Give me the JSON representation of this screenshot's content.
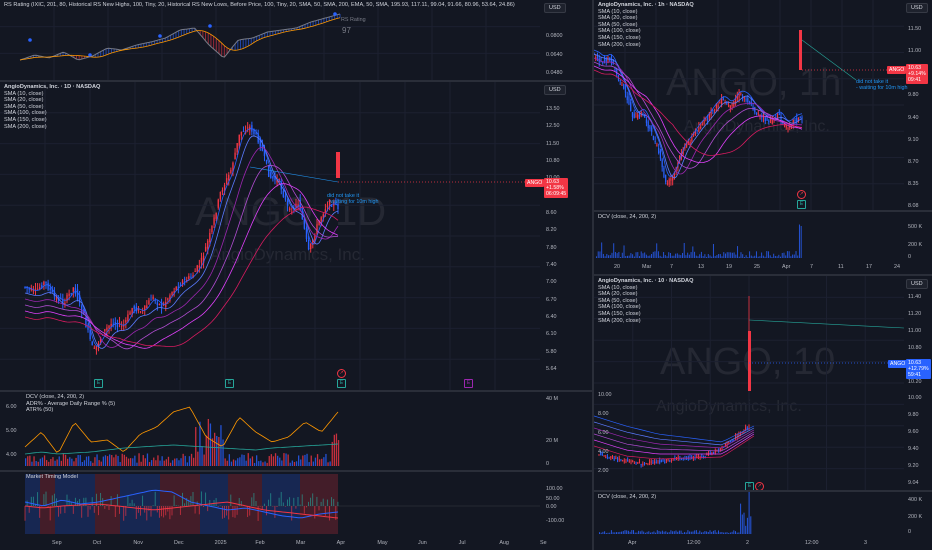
{
  "colors": {
    "background": "#131722",
    "up": "#26a69a",
    "down": "#ef5350",
    "candle_up": "#2962ff",
    "candle_down": "#f23645",
    "sma_blue": "#2962ff",
    "sma_purple": "#9c27b0",
    "accent_note": "#2196f3",
    "orange": "#ff9800"
  },
  "icons": {
    "earnings_badge": "E-badge-icon",
    "flag_badge": "lightning-icon"
  },
  "left": {
    "rs": {
      "legend": "RS Rating (IXIC, 201, 80, Historical RS New Highs, 100, Tiny, 20, Historical RS New Lows, Before Price, 100, Tiny, 20, SMA, 50, SMA, 200, EMA, 50, SMA, 195.93, 117.11, 99.04, 91.66, 80.96, 53.64, 24.86)",
      "rating_label": "RS Rating",
      "rating_value": "97",
      "currency": "USD",
      "scale": [
        "0.0800",
        "0.0640",
        "0.0480"
      ]
    },
    "main": {
      "legend": [
        "AngioDynamics, Inc. · 1D · NASDAQ",
        "SMA (10, close)",
        "SMA (20, close)",
        "SMA (50, close)",
        "SMA (100, close)",
        "SMA (150, close)",
        "SMA (200, close)"
      ],
      "currency": "USD",
      "watermark_symbol": "ANGO, 1D",
      "watermark_name": "AngioDynamics, Inc.",
      "scale": [
        "13.50",
        "12.50",
        "11.50",
        "10.80",
        "10.00",
        "9.40",
        "8.60",
        "8.20",
        "7.80",
        "7.40",
        "7.00",
        "6.70",
        "6.40",
        "6.10",
        "5.80",
        "5.64"
      ],
      "price_tag": {
        "symbol": "ANGO",
        "price": "10.63",
        "change": "+1.58%",
        "countdown": "06:09:45"
      },
      "note": [
        "did not take it",
        "- waiting for 10m high"
      ]
    },
    "dcv": {
      "legend": [
        "DCV (close, 24, 200, 2)",
        "ADR% - Average Daily Range % (5)",
        "ATR% (50)"
      ],
      "left_scale": [
        "6.00",
        "5.00",
        "4.00"
      ],
      "right_scale": [
        "40 M",
        "20 M",
        "0"
      ]
    },
    "mtm": {
      "legend": "Market Timing Model",
      "scale": [
        "100.00",
        "50.00",
        "0.00",
        "-100.00"
      ]
    },
    "time_axis": [
      "Sep",
      "Oct",
      "Nov",
      "Dec",
      "2025",
      "Feb",
      "Mar",
      "Apr",
      "May",
      "Jun",
      "Jul",
      "Aug",
      "Se"
    ]
  },
  "right_top": {
    "legend": [
      "AngioDynamics, Inc. · 1h · NASDAQ",
      "SMA (10, close)",
      "SMA (20, close)",
      "SMA (50, close)",
      "SMA (100, close)",
      "SMA (150, close)",
      "SMA (200, close)"
    ],
    "currency": "USD",
    "watermark_symbol": "ANGO, 1h",
    "watermark_name": "AngioDynamics, Inc.",
    "scale": [
      "11.50",
      "11.00",
      "10.20",
      "9.80",
      "9.40",
      "9.10",
      "8.70",
      "8.35",
      "8.08"
    ],
    "price_tag": {
      "symbol": "ANGO",
      "price": "10.63",
      "change": "+9.14%",
      "countdown": "09:41"
    },
    "note": [
      "did not take it",
      "- waiting for 10m high"
    ],
    "dcv_legend": "DCV (close, 24, 200, 2)",
    "dcv_scale": [
      "500 K",
      "200 K",
      "0"
    ],
    "time_axis": [
      "20",
      "Mar",
      "7",
      "13",
      "19",
      "25",
      "Apr",
      "7",
      "11",
      "17",
      "24"
    ]
  },
  "right_bottom": {
    "legend": [
      "AngioDynamics, Inc. · 10 · NASDAQ",
      "SMA (10, close)",
      "SMA (20, close)",
      "SMA (50, close)",
      "SMA (100, close)",
      "SMA (150, close)",
      "SMA (200, close)"
    ],
    "currency": "USD",
    "watermark_symbol": "ANGO, 10",
    "watermark_name": "AngioDynamics, Inc.",
    "scale": [
      "11.40",
      "11.20",
      "11.00",
      "10.80",
      "10.40",
      "10.20",
      "10.00",
      "9.80",
      "9.60",
      "9.40",
      "9.20",
      "9.04"
    ],
    "left_scale": [
      "10.00",
      "8.00",
      "6.00",
      "4.00",
      "2.00"
    ],
    "price_tag": {
      "symbol": "ANGO",
      "price": "10.63",
      "change": "+12.79%",
      "countdown": "59:41"
    },
    "dcv_legend": "DCV (close, 24, 200, 2)",
    "dcv_scale": [
      "400 K",
      "200 K",
      "0"
    ],
    "time_axis": [
      "Apr",
      "12:00",
      "2",
      "12:00",
      "3"
    ]
  }
}
